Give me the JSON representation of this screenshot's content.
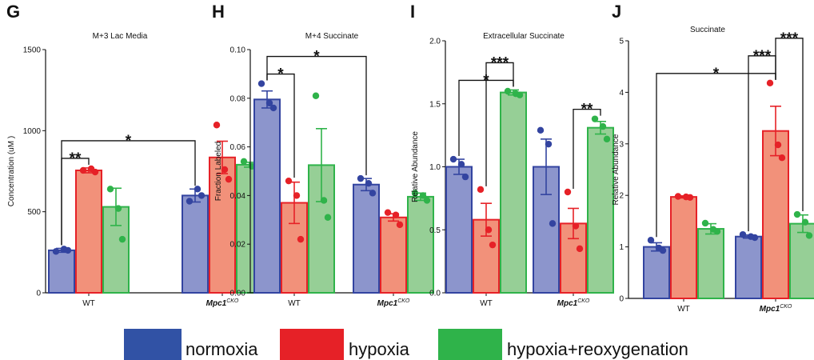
{
  "colors": {
    "normoxia": "#3344a0",
    "normoxia_fill": "#8c95cc",
    "hypoxia": "#e62127",
    "hypoxia_fill": "#f2917a",
    "reox": "#2fb34a",
    "reox_fill": "#96cf96",
    "axis": "#111111"
  },
  "legend": [
    {
      "label": "normoxia",
      "key": "normoxia"
    },
    {
      "label": "hypoxia",
      "key": "hypoxia"
    },
    {
      "label": "hypoxia+reoxygenation",
      "key": "reox"
    }
  ],
  "chart_data": [
    {
      "type": "bar",
      "letter": "G",
      "title": "M+3 Lac Media",
      "ylabel": "Concentration (uM )",
      "ylim": [
        0,
        1500
      ],
      "yticks": [
        0,
        500,
        1000,
        1500
      ],
      "categories": [
        {
          "main": "WT",
          "sup": ""
        },
        {
          "main": "Mpc1",
          "sup": "CKO"
        }
      ],
      "series": [
        {
          "name": "normoxia",
          "key": "normoxia",
          "values": [
            262,
            600
          ],
          "err": [
            12,
            40
          ],
          "points": [
            [
              255,
              270,
              262
            ],
            [
              565,
              640,
              600
            ]
          ]
        },
        {
          "name": "hypoxia",
          "key": "hypoxia",
          "values": [
            755,
            835
          ],
          "err": [
            15,
            100
          ],
          "points": [
            [
              755,
              765,
              745
            ],
            [
              1035,
              760,
              700
            ]
          ]
        },
        {
          "name": "hypoxia+reoxygenation",
          "key": "reox",
          "values": [
            530,
            790
          ],
          "err": [
            115,
            15
          ],
          "points": [
            [
              640,
              520,
              330
            ],
            [
              810,
              780,
              780
            ]
          ]
        }
      ],
      "sig": [
        {
          "from": [
            0,
            0
          ],
          "to": [
            0,
            1
          ],
          "label": "**"
        },
        {
          "from": [
            0,
            0
          ],
          "to": [
            1,
            0
          ],
          "label": "*"
        }
      ]
    },
    {
      "type": "bar",
      "letter": "H",
      "title": "M+4 Succinate",
      "ylabel": "Fraction Labeled",
      "ylim": [
        0,
        0.1
      ],
      "yticks": [
        0,
        0.02,
        0.04,
        0.06,
        0.08,
        0.1
      ],
      "ytick_labels": [
        "0.00",
        "0.02",
        "0.04",
        "0.06",
        "0.08",
        "0.10"
      ],
      "categories": [
        {
          "main": "WT",
          "sup": ""
        },
        {
          "main": "Mpc1",
          "sup": "CKO"
        }
      ],
      "series": [
        {
          "name": "normoxia",
          "key": "normoxia",
          "values": [
            0.0795,
            0.0445
          ],
          "err": [
            0.0035,
            0.0025
          ],
          "points": [
            [
              0.086,
              0.078,
              0.076
            ],
            [
              0.047,
              0.045,
              0.041
            ]
          ]
        },
        {
          "name": "hypoxia",
          "key": "hypoxia",
          "values": [
            0.037,
            0.031
          ],
          "err": [
            0.0085,
            0.0015
          ],
          "points": [
            [
              0.046,
              0.04,
              0.022
            ],
            [
              0.033,
              0.032,
              0.028
            ]
          ]
        },
        {
          "name": "hypoxia+reoxygenation",
          "key": "reox",
          "values": [
            0.0525,
            0.0395
          ],
          "err": [
            0.015,
            0.0015
          ],
          "points": [
            [
              0.081,
              0.038,
              0.031
            ],
            [
              0.041,
              0.04,
              0.038
            ]
          ]
        }
      ],
      "sig": [
        {
          "from": [
            0,
            0
          ],
          "to": [
            0,
            1
          ],
          "label": "*"
        },
        {
          "from": [
            0,
            0
          ],
          "to": [
            1,
            0
          ],
          "label": "*"
        }
      ]
    },
    {
      "type": "bar",
      "letter": "I",
      "title": "Extracellular Succinate",
      "ylabel": "Relative Abundance",
      "ylim": [
        0,
        2
      ],
      "yticks": [
        0,
        0.5,
        1,
        1.5,
        2
      ],
      "ytick_labels": [
        "0.0",
        "0.5",
        "1.0",
        "1.5",
        "2.0"
      ],
      "categories": [
        {
          "main": "WT",
          "sup": ""
        },
        {
          "main": "Mpc1",
          "sup": "CKO"
        }
      ],
      "series": [
        {
          "name": "normoxia",
          "key": "normoxia",
          "values": [
            1.0,
            1.0
          ],
          "err": [
            0.06,
            0.22
          ],
          "points": [
            [
              1.06,
              1.02,
              0.92
            ],
            [
              1.29,
              1.18,
              0.55
            ]
          ]
        },
        {
          "name": "hypoxia",
          "key": "hypoxia",
          "values": [
            0.58,
            0.55
          ],
          "err": [
            0.13,
            0.12
          ],
          "points": [
            [
              0.82,
              0.5,
              0.38
            ],
            [
              0.8,
              0.53,
              0.35
            ]
          ]
        },
        {
          "name": "hypoxia+reoxygenation",
          "key": "reox",
          "values": [
            1.59,
            1.31
          ],
          "err": [
            0.02,
            0.05
          ],
          "points": [
            [
              1.6,
              1.58,
              1.57
            ],
            [
              1.38,
              1.32,
              1.22
            ]
          ]
        }
      ],
      "sig": [
        {
          "from": [
            0,
            0
          ],
          "to": [
            0,
            2
          ],
          "label": "*"
        },
        {
          "from": [
            0,
            1
          ],
          "to": [
            0,
            2
          ],
          "label": "***"
        },
        {
          "from": [
            1,
            1
          ],
          "to": [
            1,
            2
          ],
          "label": "**"
        }
      ]
    },
    {
      "type": "bar",
      "letter": "J",
      "title": "Succinate",
      "ylabel": "Relative Abundance",
      "ylim": [
        0,
        5
      ],
      "yticks": [
        0,
        1,
        2,
        3,
        4,
        5
      ],
      "categories": [
        {
          "main": "WT",
          "sup": ""
        },
        {
          "main": "Mpc1",
          "sup": "CKO"
        }
      ],
      "series": [
        {
          "name": "normoxia",
          "key": "normoxia",
          "values": [
            1.0,
            1.2
          ],
          "err": [
            0.08,
            0.03
          ],
          "points": [
            [
              1.13,
              0.98,
              0.93
            ],
            [
              1.24,
              1.2,
              1.18
            ]
          ]
        },
        {
          "name": "hypoxia",
          "key": "hypoxia",
          "values": [
            1.97,
            3.25
          ],
          "err": [
            0.02,
            0.48
          ],
          "points": [
            [
              1.98,
              1.97,
              1.96
            ],
            [
              4.18,
              2.98,
              2.73
            ]
          ]
        },
        {
          "name": "hypoxia+reoxygenation",
          "key": "reox",
          "values": [
            1.35,
            1.45
          ],
          "err": [
            0.1,
            0.17
          ],
          "points": [
            [
              1.46,
              1.34,
              1.3
            ],
            [
              1.63,
              1.48,
              1.22
            ]
          ]
        }
      ],
      "sig": [
        {
          "from": [
            0,
            0
          ],
          "to": [
            1,
            1
          ],
          "label": "*"
        },
        {
          "from": [
            1,
            0
          ],
          "to": [
            1,
            1
          ],
          "label": "***"
        },
        {
          "from": [
            1,
            1
          ],
          "to": [
            1,
            2
          ],
          "label": "***"
        }
      ]
    }
  ]
}
